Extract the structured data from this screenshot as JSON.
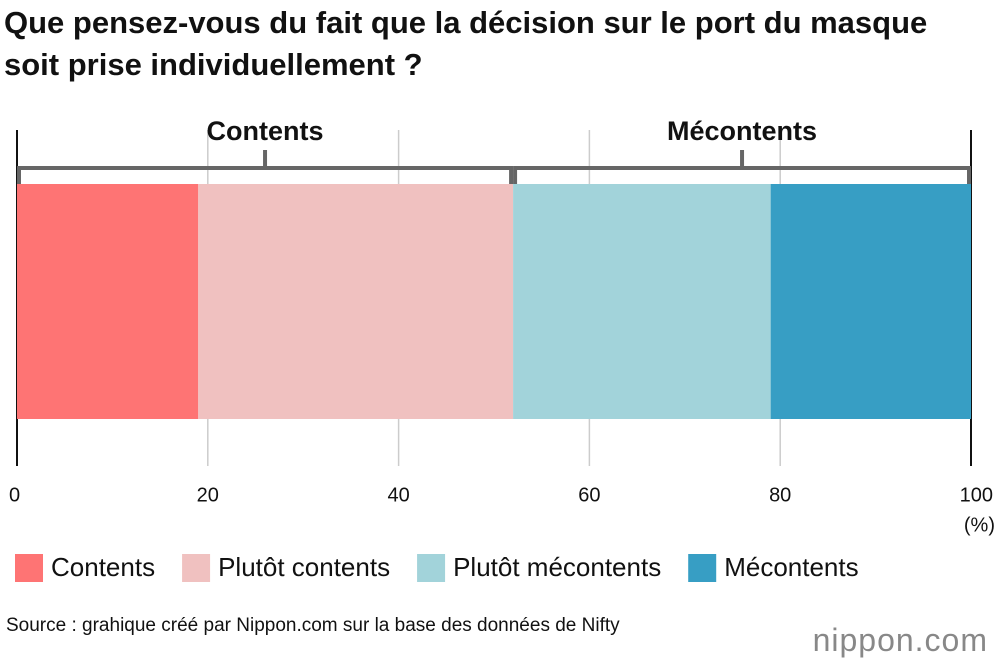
{
  "chart_data": {
    "type": "stacked-bar",
    "title": "Que pensez-vous du fait que la décision sur le port du masque soit prise individuellement ?",
    "series": [
      {
        "name": "Contents",
        "color": "#fe7474",
        "values": [
          19
        ]
      },
      {
        "name": "Plutôt contents",
        "color": "#f0c1c0",
        "values": [
          33
        ]
      },
      {
        "name": "Plutôt mécontents",
        "color": "#a2d3da",
        "values": [
          27
        ]
      },
      {
        "name": "Mécontents",
        "color": "#379ec4",
        "values": [
          21
        ]
      }
    ],
    "groups": [
      "Contents",
      "Mécontents"
    ],
    "xlim": [
      0,
      100
    ],
    "xticks": [
      0,
      20,
      40,
      60,
      80,
      100
    ],
    "x_unit": "(%)",
    "grid": true,
    "source": "Source : grahique créé par Nippon.com sur la base des données de Nifty",
    "logo": "nippon.com"
  }
}
